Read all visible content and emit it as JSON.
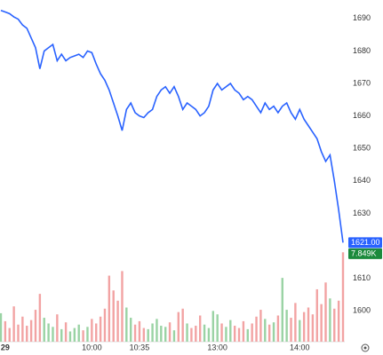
{
  "chart_data": {
    "type": "line",
    "categories": [
      null,
      "29",
      null,
      null,
      null,
      null,
      null,
      null,
      null,
      null,
      null,
      null,
      null,
      null,
      null,
      null,
      null,
      null,
      null,
      null,
      null,
      "10:00",
      null,
      null,
      null,
      null,
      null,
      null,
      null,
      null,
      null,
      null,
      "10:35",
      null,
      null,
      null,
      null,
      null,
      null,
      null,
      null,
      null,
      null,
      null,
      null,
      null,
      null,
      null,
      null,
      null,
      "13:00",
      null,
      null,
      null,
      null,
      null,
      null,
      null,
      null,
      null,
      null,
      null,
      null,
      null,
      null,
      null,
      null,
      null,
      null,
      "14:00",
      null,
      null,
      null,
      null,
      null,
      null,
      null,
      null,
      null,
      null
    ],
    "price": {
      "color": "#2962ff",
      "values": [
        1692.5,
        1692,
        1691.5,
        1690.5,
        1689.8,
        1688,
        1687,
        1684,
        1681,
        1674.5,
        1680,
        1681,
        1682,
        1677,
        1679,
        1677,
        1678,
        1678.5,
        1679,
        1678,
        1680,
        1679.5,
        1676,
        1673,
        1671,
        1668,
        1664,
        1660,
        1655.5,
        1662,
        1664,
        1661,
        1660,
        1659.5,
        1661,
        1662,
        1666,
        1668,
        1669,
        1667,
        1669,
        1666,
        1662,
        1664,
        1663,
        1662,
        1660,
        1661,
        1663,
        1668,
        1670,
        1668,
        1669,
        1670,
        1668,
        1667,
        1665,
        1666,
        1665,
        1663,
        1661,
        1664,
        1662,
        1663,
        1661,
        1663,
        1664,
        1661,
        1659,
        1662,
        1659,
        1657,
        1655,
        1653,
        1649,
        1646,
        1648,
        1640,
        1631,
        1621
      ],
      "last_label": "1621.00"
    },
    "volume": {
      "up_color": "#9ad3a4",
      "down_color": "#f2a3a3",
      "values": [
        2.5,
        1.8,
        1.2,
        3.1,
        1.5,
        2.2,
        1.4,
        1.9,
        2.8,
        4.2,
        2.1,
        1.6,
        1.3,
        2.4,
        1.1,
        1.7,
        0.9,
        1.2,
        1.5,
        1.0,
        1.3,
        2.0,
        1.6,
        2.2,
        2.9,
        5.8,
        4.5,
        3.6,
        6.2,
        3.0,
        2.1,
        1.5,
        1.8,
        1.2,
        1.1,
        1.6,
        2.0,
        1.4,
        1.3,
        1.7,
        1.0,
        2.6,
        2.9,
        1.6,
        1.2,
        1.4,
        2.3,
        1.5,
        1.2,
        2.7,
        2.4,
        1.6,
        1.3,
        1.9,
        1.4,
        1.2,
        1.8,
        1.1,
        1.6,
        2.2,
        2.8,
        2.0,
        1.5,
        1.7,
        2.3,
        5.6,
        2.8,
        2.1,
        3.4,
        1.9,
        2.6,
        3.0,
        2.4,
        4.6,
        3.3,
        5.2,
        3.8,
        2.9,
        3.6,
        7.849
      ],
      "last_label": "7.849K"
    },
    "ylim": [
      1590.5,
      1695.7
    ],
    "yticks": [
      1600,
      1610,
      1630,
      1640,
      1650,
      1660,
      1670,
      1680,
      1690
    ],
    "y2lim": [
      0,
      30
    ]
  }
}
